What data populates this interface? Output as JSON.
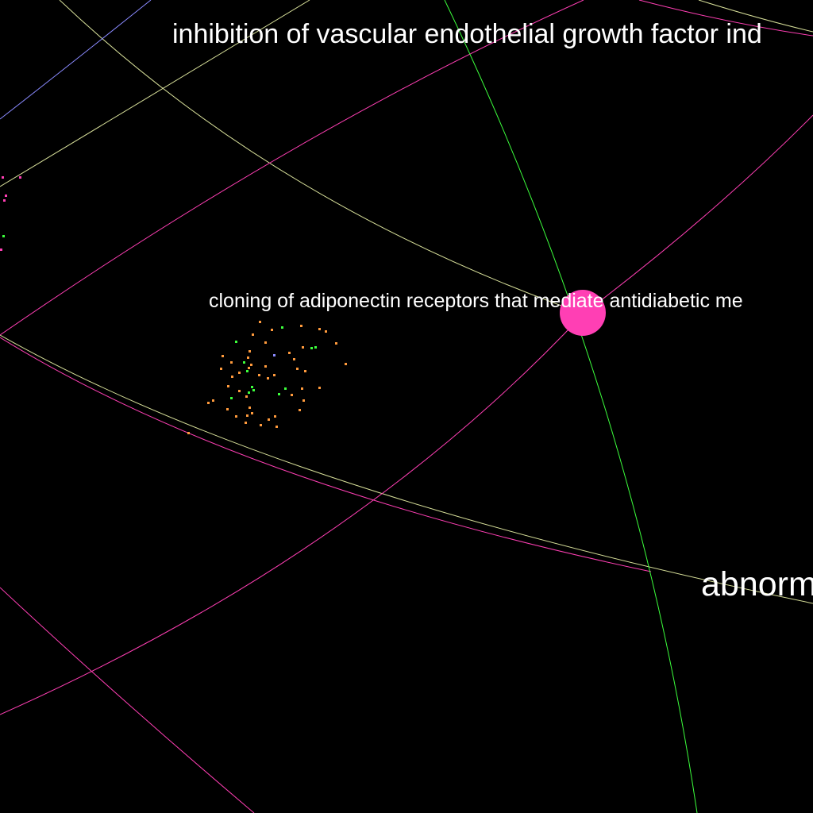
{
  "graph": {
    "labels": {
      "top": "inhibition of vascular endothelial growth factor ind",
      "middle": "cloning of adiponectin receptors that mediate antidiabetic me",
      "bottom": "abnorm"
    },
    "colors": {
      "background": "#000000",
      "magenta": "#ff3fb4",
      "green": "#3cff3c",
      "pale_yellow": "#dde6a0",
      "blue": "#8a8aff",
      "orange": "#ff9a3c",
      "focus_node": "#ff3fb4",
      "label_text": "#ffffff"
    }
  }
}
